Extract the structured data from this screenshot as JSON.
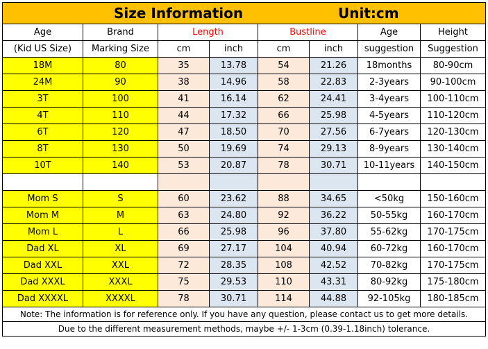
{
  "title": {
    "left": "Size Information",
    "right": "Unit:cm"
  },
  "headers": {
    "age_line1": "Age",
    "age_line2": "(Kid US Size)",
    "brand_line1": "Brand",
    "brand_line2": "Marking Size",
    "length": "Length",
    "bustline": "Bustline",
    "cm": "cm",
    "inch": "inch",
    "age_sugg_line1": "Age",
    "age_sugg_line2": "suggestion",
    "height_line1": "Height",
    "height_line2": "Suggestion"
  },
  "kids_rows": [
    {
      "size": "18M",
      "brand": "80",
      "len_cm": "35",
      "len_in": "13.78",
      "bust_cm": "54",
      "bust_in": "21.26",
      "age": "18months",
      "height": "80-90cm"
    },
    {
      "size": "24M",
      "brand": "90",
      "len_cm": "38",
      "len_in": "14.96",
      "bust_cm": "58",
      "bust_in": "22.83",
      "age": "2-3years",
      "height": "90-100cm"
    },
    {
      "size": "3T",
      "brand": "100",
      "len_cm": "41",
      "len_in": "16.14",
      "bust_cm": "62",
      "bust_in": "24.41",
      "age": "3-4years",
      "height": "100-110cm"
    },
    {
      "size": "4T",
      "brand": "110",
      "len_cm": "44",
      "len_in": "17.32",
      "bust_cm": "66",
      "bust_in": "25.98",
      "age": "4-5years",
      "height": "110-120cm"
    },
    {
      "size": "6T",
      "brand": "120",
      "len_cm": "47",
      "len_in": "18.50",
      "bust_cm": "70",
      "bust_in": "27.56",
      "age": "6-7years",
      "height": "120-130cm"
    },
    {
      "size": "8T",
      "brand": "130",
      "len_cm": "50",
      "len_in": "19.69",
      "bust_cm": "74",
      "bust_in": "29.13",
      "age": "8-9years",
      "height": "130-140cm"
    },
    {
      "size": "10T",
      "brand": "140",
      "len_cm": "53",
      "len_in": "20.87",
      "bust_cm": "78",
      "bust_in": "30.71",
      "age": "10-11years",
      "height": "140-150cm"
    }
  ],
  "adult_rows": [
    {
      "size": "Mom  S",
      "brand": "S",
      "len_cm": "60",
      "len_in": "23.62",
      "bust_cm": "88",
      "bust_in": "34.65",
      "age": "<50kg",
      "height": "150-160cm"
    },
    {
      "size": "Mom  M",
      "brand": "M",
      "len_cm": "63",
      "len_in": "24.80",
      "bust_cm": "92",
      "bust_in": "36.22",
      "age": "50-55kg",
      "height": "160-170cm"
    },
    {
      "size": "Mom  L",
      "brand": "L",
      "len_cm": "66",
      "len_in": "25.98",
      "bust_cm": "96",
      "bust_in": "37.80",
      "age": "55-62kg",
      "height": "170-175cm"
    },
    {
      "size": "Dad XL",
      "brand": "XL",
      "len_cm": "69",
      "len_in": "27.17",
      "bust_cm": "104",
      "bust_in": "40.94",
      "age": "60-72kg",
      "height": "160-170cm"
    },
    {
      "size": "Dad XXL",
      "brand": "XXL",
      "len_cm": "72",
      "len_in": "28.35",
      "bust_cm": "108",
      "bust_in": "42.52",
      "age": "70-82kg",
      "height": "170-175cm"
    },
    {
      "size": "Dad XXXL",
      "brand": "XXXL",
      "len_cm": "75",
      "len_in": "29.53",
      "bust_cm": "110",
      "bust_in": "43.31",
      "age": "80-92kg",
      "height": "175-180cm"
    },
    {
      "size": "Dad XXXXL",
      "brand": "XXXXL",
      "len_cm": "78",
      "len_in": "30.71",
      "bust_cm": "114",
      "bust_in": "44.88",
      "age": "92-105kg",
      "height": "180-185cm"
    }
  ],
  "notes": {
    "line1": "Note: The information is for reference only. If you have any question, please contact us to get more details.",
    "line2": "Due to the different measurement methods, maybe +/- 1-3cm (0.39-1.18inch) tolerance."
  },
  "colors": {
    "title_band": "#ffc000",
    "size_cells": "#ffff00",
    "length_header": "#ff0000",
    "cm_columns": "#fde9d9",
    "inch_columns": "#dce6f1"
  }
}
